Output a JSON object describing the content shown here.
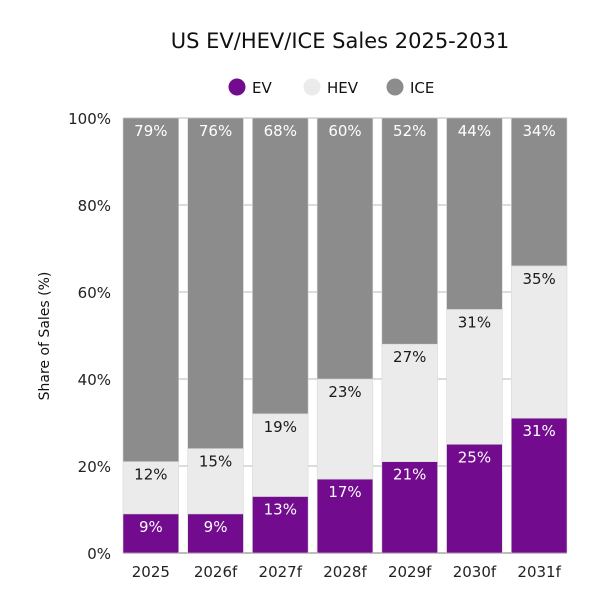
{
  "chart_data": {
    "type": "bar",
    "stacked": true,
    "title": "US EV/HEV/ICE Sales 2025-2031",
    "xlabel": "",
    "ylabel": "Share of Sales (%)",
    "ylim": [
      0,
      100
    ],
    "yticks": [
      "0%",
      "20%",
      "40%",
      "60%",
      "80%",
      "100%"
    ],
    "grid": true,
    "legend_position": "top",
    "categories": [
      "2025",
      "2026f",
      "2027f",
      "2028f",
      "2029f",
      "2030f",
      "2031f"
    ],
    "series": [
      {
        "name": "EV",
        "color": "#720b8d",
        "label_color": "#ffffff",
        "values": [
          9,
          9,
          13,
          17,
          21,
          25,
          31
        ]
      },
      {
        "name": "HEV",
        "color": "#ebebeb",
        "label_color": "#1a1a1a",
        "values": [
          12,
          15,
          19,
          23,
          27,
          31,
          35
        ]
      },
      {
        "name": "ICE",
        "color": "#8c8c8c",
        "label_color": "#ffffff",
        "values": [
          79,
          76,
          68,
          60,
          52,
          44,
          34
        ]
      }
    ]
  }
}
